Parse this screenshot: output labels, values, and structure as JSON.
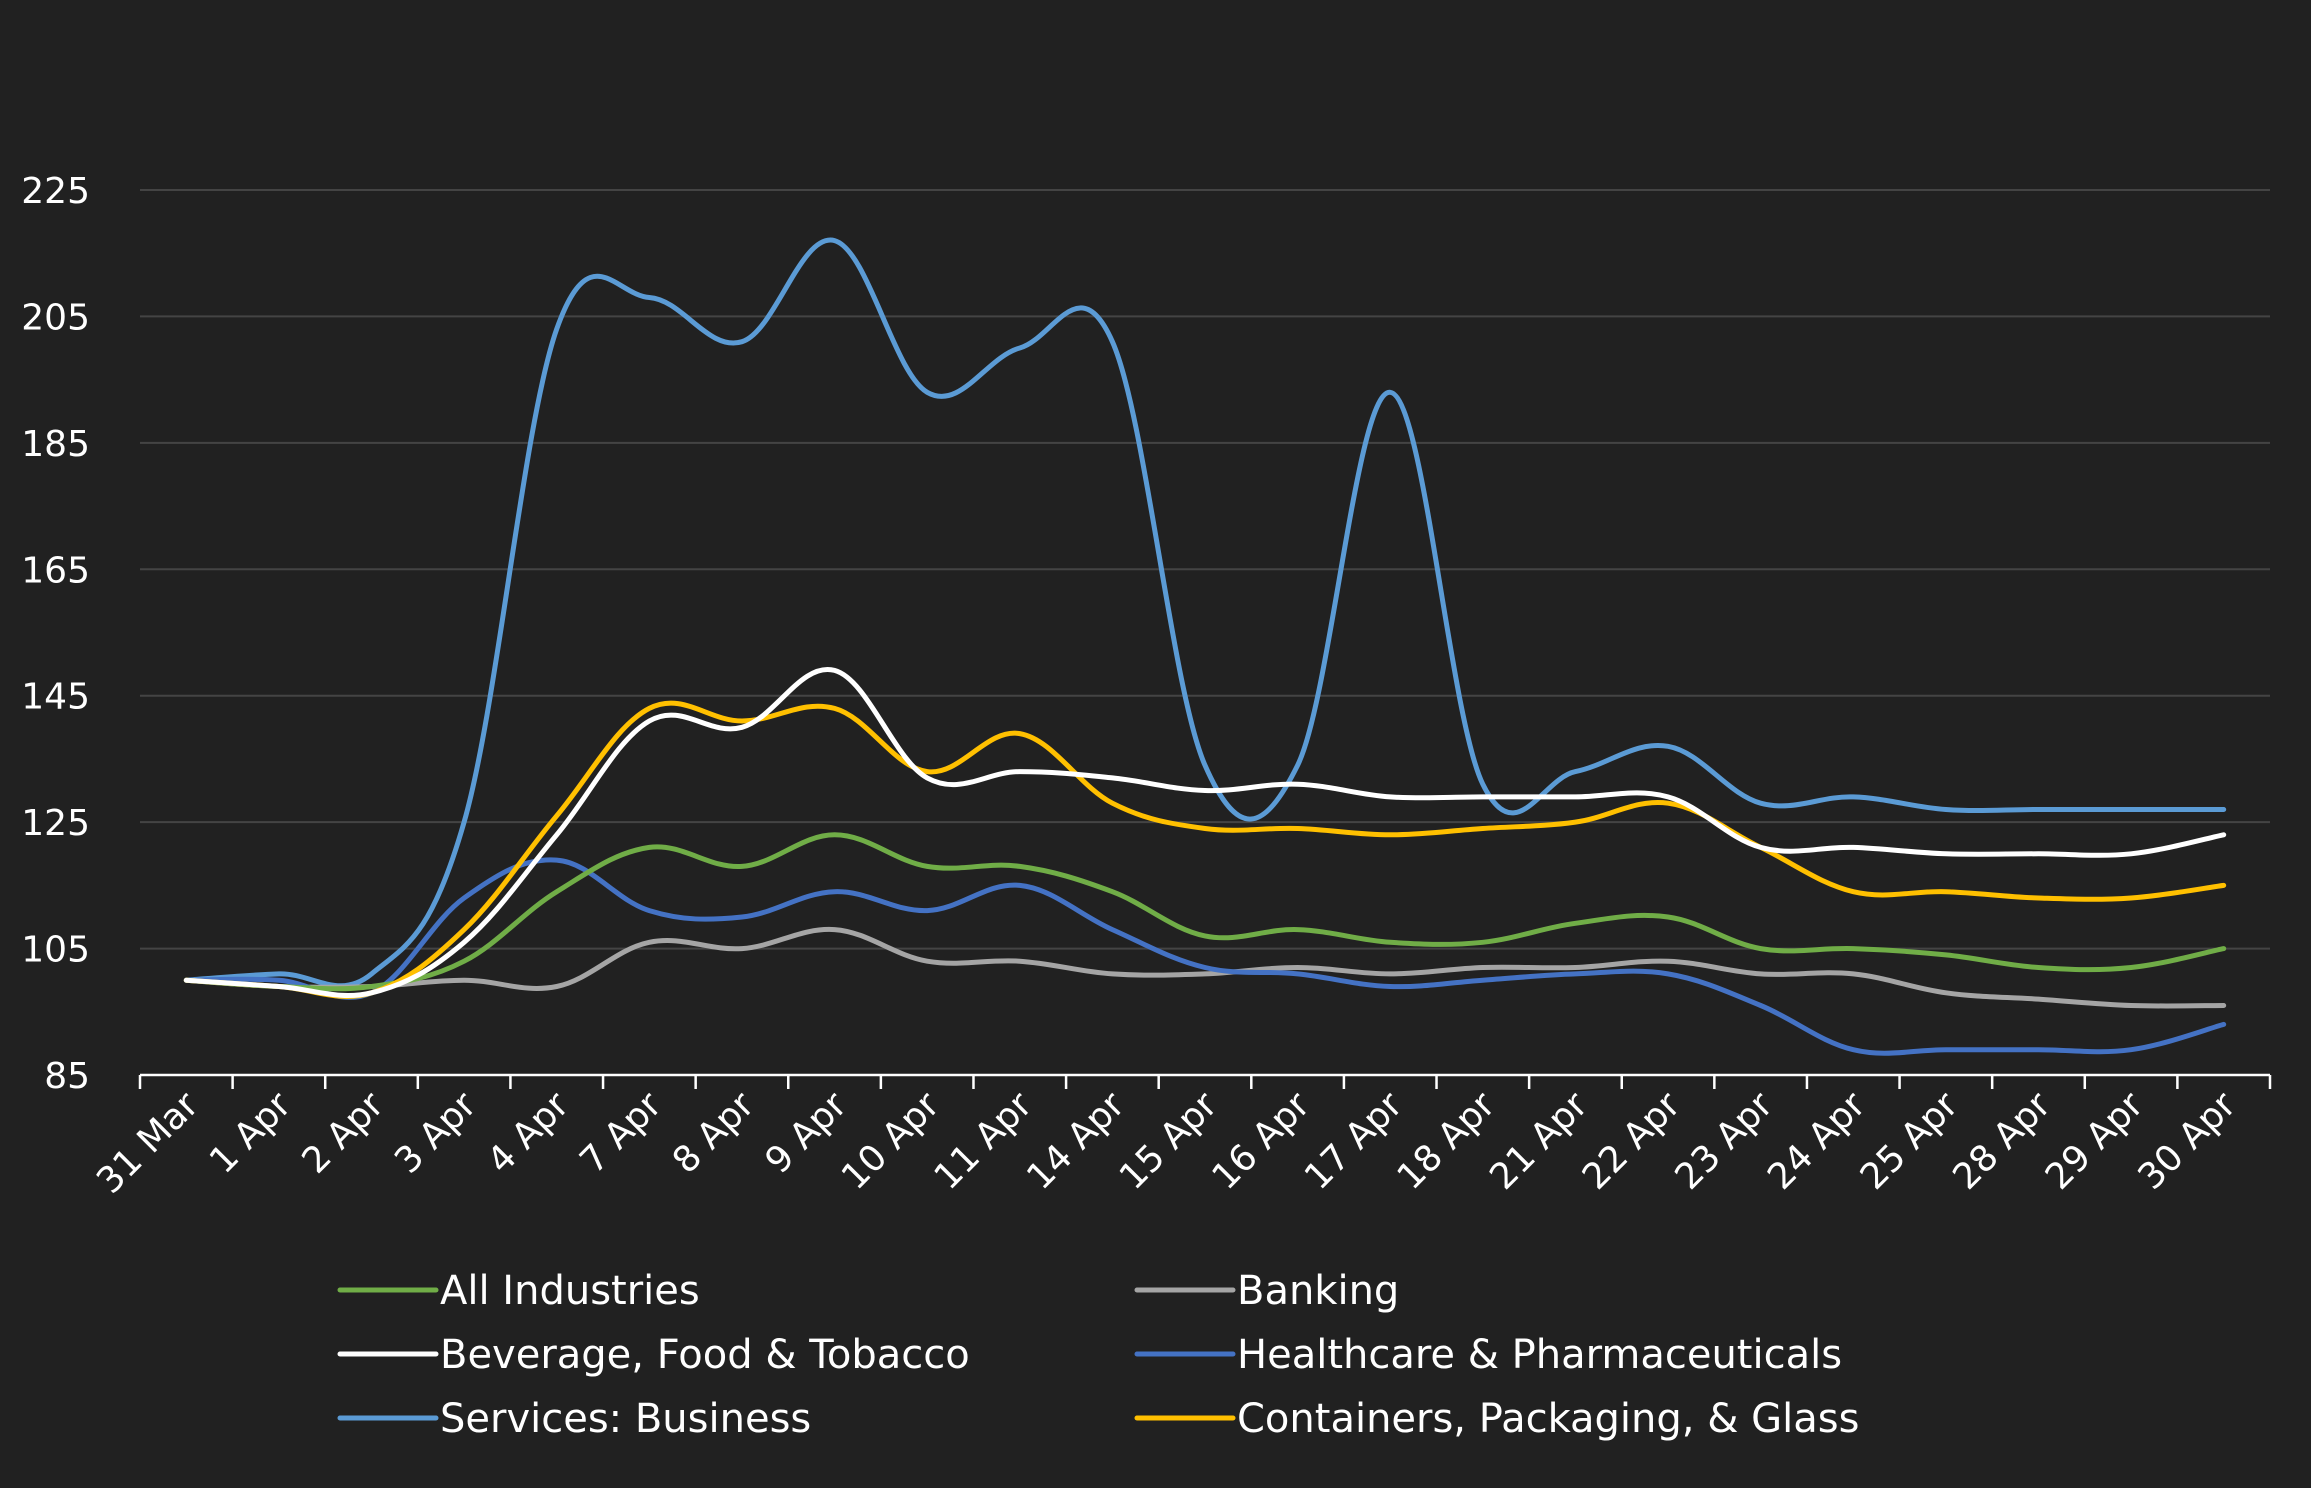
{
  "chart_data": {
    "type": "line",
    "title": "",
    "xlabel": "",
    "ylabel": "",
    "ylim": [
      85,
      225
    ],
    "yticks": [
      85,
      105,
      125,
      145,
      165,
      185,
      205,
      225
    ],
    "grid": "horizontal",
    "legend_position": "bottom",
    "categories": [
      "31 Mar",
      "1 Apr",
      "2 Apr",
      "3 Apr",
      "4 Apr",
      "7 Apr",
      "8 Apr",
      "9 Apr",
      "10 Apr",
      "11 Apr",
      "14 Apr",
      "15 Apr",
      "16 Apr",
      "17 Apr",
      "18 Apr",
      "21 Apr",
      "22 Apr",
      "23 Apr",
      "24 Apr",
      "25 Apr",
      "28 Apr",
      "29 Apr",
      "30 Apr"
    ],
    "series": [
      {
        "name": "All Industries",
        "color": "#70AD47",
        "values": [
          100,
          99,
          99,
          103,
          114,
          121,
          118,
          123,
          118,
          118,
          114,
          107,
          108,
          106,
          106,
          109,
          110,
          105,
          105,
          104,
          102,
          102,
          105
        ]
      },
      {
        "name": "Banking",
        "color": "#A5A5A5",
        "values": [
          100,
          99,
          99,
          100,
          99,
          106,
          105,
          108,
          103,
          103,
          101,
          101,
          102,
          101,
          102,
          102,
          103,
          101,
          101,
          98,
          97,
          96,
          96
        ]
      },
      {
        "name": "Beverage, Food & Tobacco",
        "color": "#FFFFFF",
        "values": [
          100,
          99,
          98,
          106,
          123,
          141,
          140,
          149,
          132,
          133,
          132,
          130,
          131,
          129,
          129,
          129,
          129,
          121,
          121,
          120,
          120,
          120,
          123
        ]
      },
      {
        "name": "Healthcare & Pharmaceuticals",
        "color": "#4472C4",
        "values": [
          100,
          100,
          98,
          113,
          119,
          111,
          110,
          114,
          111,
          115,
          108,
          102,
          101,
          99,
          100,
          101,
          101,
          96,
          89,
          89,
          89,
          89,
          93
        ]
      },
      {
        "name": "Services: Business",
        "color": "#5B9BD5",
        "values": [
          100,
          101,
          101,
          125,
          203,
          208,
          201,
          217,
          193,
          200,
          201,
          134,
          134,
          193,
          131,
          133,
          137,
          128,
          129,
          127,
          127,
          127,
          127
        ]
      },
      {
        "name": "Containers, Packaging, & Glass",
        "color": "#FFC000",
        "values": [
          100,
          99,
          98,
          108,
          126,
          143,
          141,
          143,
          133,
          139,
          128,
          124,
          124,
          123,
          124,
          125,
          128,
          121,
          114,
          114,
          113,
          113,
          115
        ]
      }
    ]
  }
}
